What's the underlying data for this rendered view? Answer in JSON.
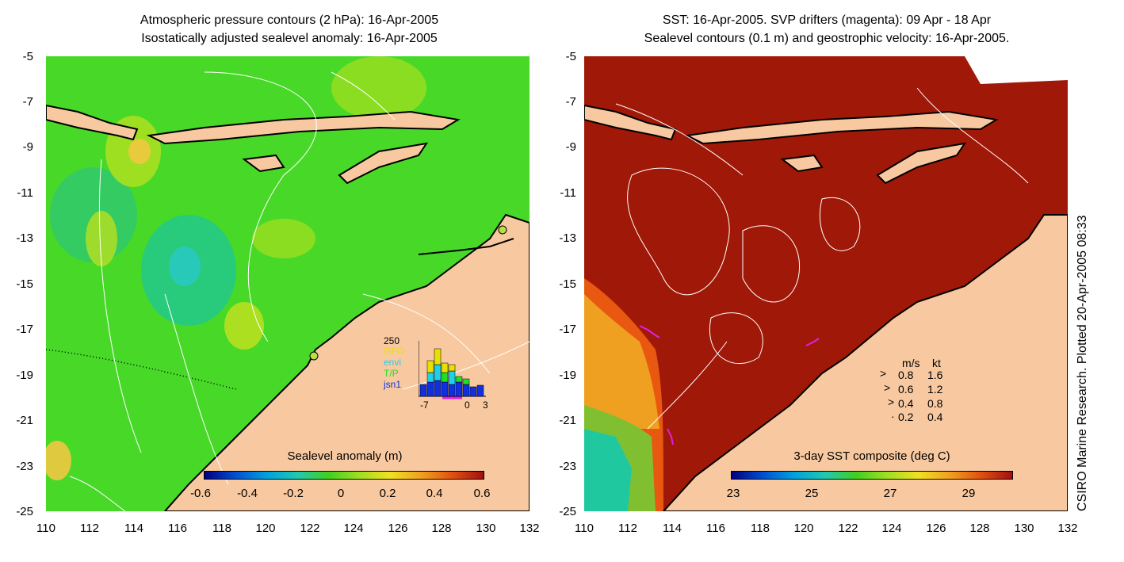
{
  "left_panel": {
    "title_line1": "Atmospheric pressure contours (2 hPa): 16-Apr-2005",
    "title_line2": "Isostatically adjusted sealevel anomaly: 16-Apr-2005",
    "colorbar_title": "Sealevel anomaly (m)",
    "colorbar_ticks": [
      "-0.6",
      "-0.4",
      "-0.2",
      "0",
      "0.2",
      "0.4",
      "0.6"
    ],
    "histogram": {
      "max_label": "250",
      "legend": [
        "GFO",
        "envi",
        "T/P",
        "jsn1"
      ],
      "legend_colors": [
        "#e8e000",
        "#20d0e8",
        "#20e020",
        "#1030e0"
      ],
      "x_ticks": [
        "-7",
        "0",
        "3"
      ]
    }
  },
  "right_panel": {
    "title_line1": "SST: 16-Apr-2005. SVP drifters (magenta): 09 Apr - 18 Apr",
    "title_line2": "Sealevel contours (0.1 m) and geostrophic velocity: 16-Apr-2005.",
    "colorbar_title": "3-day SST composite (deg C)",
    "colorbar_ticks": [
      "23",
      "25",
      "27",
      "29"
    ],
    "velocity_legend": {
      "headers": [
        "m/s",
        "kt"
      ],
      "rows": [
        [
          "0.8",
          "1.6"
        ],
        [
          "0.6",
          "1.2"
        ],
        [
          "0.4",
          "0.8"
        ],
        [
          "0.2",
          "0.4"
        ]
      ]
    }
  },
  "axes": {
    "y_ticks": [
      "-5",
      "-7",
      "-9",
      "-11",
      "-13",
      "-15",
      "-17",
      "-19",
      "-21",
      "-23",
      "-25"
    ],
    "x_ticks": [
      "110",
      "112",
      "114",
      "116",
      "118",
      "120",
      "122",
      "124",
      "126",
      "128",
      "130",
      "132"
    ]
  },
  "credit": "CSIRO Marine Research. Plotted 20-Apr-2005 08:33",
  "colors": {
    "land": "#f8c9a0",
    "ocean_green": "#40d820",
    "sst_dark_red": "#a01808"
  }
}
